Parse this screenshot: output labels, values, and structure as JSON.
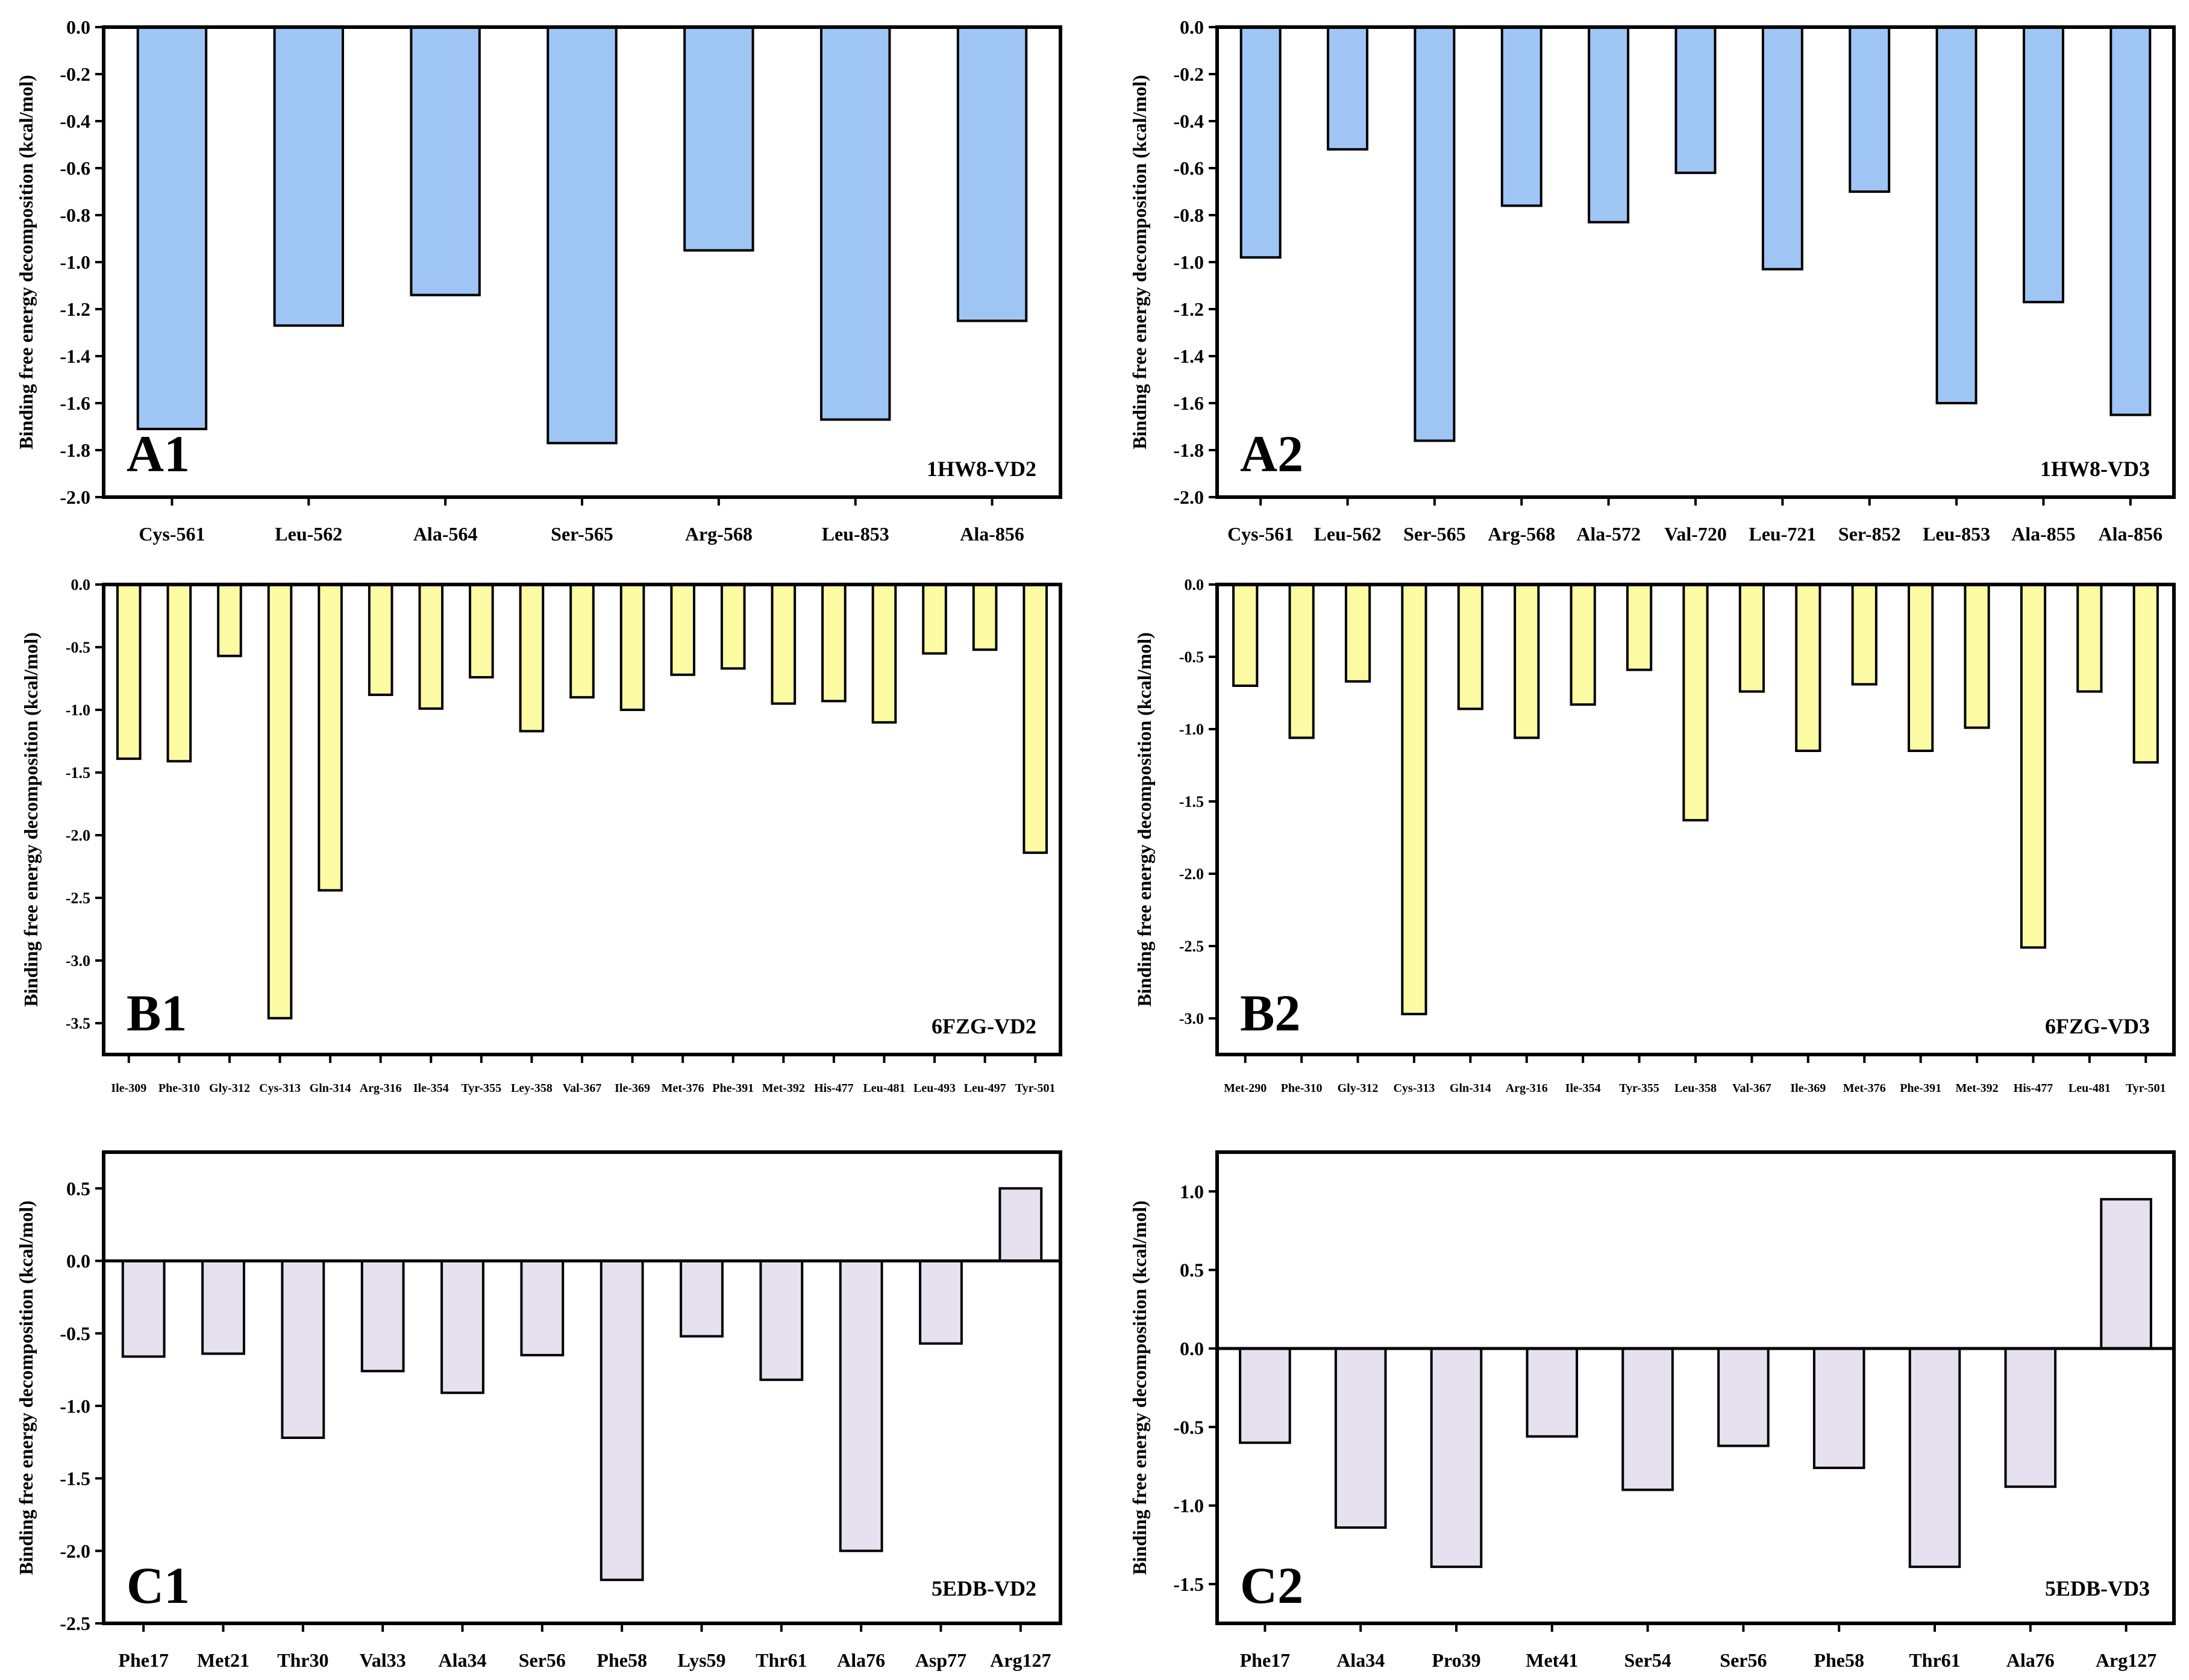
{
  "chart_data": [
    {
      "id": "A1",
      "type": "bar",
      "panel_label": "A1",
      "title": "1HW8-VD2",
      "ylabel": "Binding free energy decomposition (kcal/mol)",
      "ylim": [
        -2.0,
        0.0
      ],
      "yticks": [
        0.0,
        -0.2,
        -0.4,
        -0.6,
        -0.8,
        -1.0,
        -1.2,
        -1.4,
        -1.6,
        -1.8,
        -2.0
      ],
      "ytick_labels": [
        "0.0",
        "-0.2",
        "-0.4",
        "-0.6",
        "-0.8",
        "-1.0",
        "-1.2",
        "-1.4",
        "-1.6",
        "-1.8",
        "-2.0"
      ],
      "bar_color": "#9ec5f4",
      "categories": [
        "Cys-561",
        "Leu-562",
        "Ala-564",
        "Ser-565",
        "Arg-568",
        "Leu-853",
        "Ala-856"
      ],
      "values": [
        -1.71,
        -1.27,
        -1.14,
        -1.77,
        -0.95,
        -1.67,
        -1.25
      ]
    },
    {
      "id": "A2",
      "type": "bar",
      "panel_label": "A2",
      "title": "1HW8-VD3",
      "ylabel": "Binding free energy decomposition (kcal/mol)",
      "ylim": [
        -2.0,
        0.0
      ],
      "yticks": [
        0.0,
        -0.2,
        -0.4,
        -0.6,
        -0.8,
        -1.0,
        -1.2,
        -1.4,
        -1.6,
        -1.8,
        -2.0
      ],
      "ytick_labels": [
        "0.0",
        "-0.2",
        "-0.4",
        "-0.6",
        "-0.8",
        "-1.0",
        "-1.2",
        "-1.4",
        "-1.6",
        "-1.8",
        "-2.0"
      ],
      "bar_color": "#9ec5f4",
      "categories": [
        "Cys-561",
        "Leu-562",
        "Ser-565",
        "Arg-568",
        "Ala-572",
        "Val-720",
        "Leu-721",
        "Ser-852",
        "Leu-853",
        "Ala-855",
        "Ala-856"
      ],
      "values": [
        -0.98,
        -0.52,
        -1.76,
        -0.76,
        -0.83,
        -0.62,
        -1.03,
        -0.7,
        -1.6,
        -1.17,
        -1.65
      ]
    },
    {
      "id": "B1",
      "type": "bar",
      "panel_label": "B1",
      "title": "6FZG-VD2",
      "ylabel": "Binding free energy decomposition (kcal/mol)",
      "ylim": [
        -3.75,
        0.0
      ],
      "yticks": [
        0.0,
        -0.5,
        -1.0,
        -1.5,
        -2.0,
        -2.5,
        -3.0,
        -3.5
      ],
      "ytick_labels": [
        "0.0",
        "-0.5",
        "-1.0",
        "-1.5",
        "-2.0",
        "-2.5",
        "-3.0",
        "-3.5"
      ],
      "bar_color": "#fdfaa4",
      "categories": [
        "Ile-309",
        "Phe-310",
        "Gly-312",
        "Cys-313",
        "Gln-314",
        "Arg-316",
        "Ile-354",
        "Tyr-355",
        "Ley-358",
        "Val-367",
        "Ile-369",
        "Met-376",
        "Phe-391",
        "Met-392",
        "His-477",
        "Leu-481",
        "Leu-493",
        "Leu-497",
        "Tyr-501"
      ],
      "values": [
        -1.39,
        -1.41,
        -0.57,
        -3.46,
        -2.44,
        -0.88,
        -0.99,
        -0.74,
        -1.17,
        -0.9,
        -1.0,
        -0.72,
        -0.67,
        -0.95,
        -0.93,
        -1.1,
        -0.55,
        -0.52,
        -2.14
      ]
    },
    {
      "id": "B2",
      "type": "bar",
      "panel_label": "B2",
      "title": "6FZG-VD3",
      "ylabel": "Binding free energy decomposition (kcal/mol)",
      "ylim": [
        -3.25,
        0.0
      ],
      "yticks": [
        0.0,
        -0.5,
        -1.0,
        -1.5,
        -2.0,
        -2.5,
        -3.0
      ],
      "ytick_labels": [
        "0.0",
        "-0.5",
        "-1.0",
        "-1.5",
        "-2.0",
        "-2.5",
        "-3.0"
      ],
      "bar_color": "#fdfaa4",
      "categories": [
        "Met-290",
        "Phe-310",
        "Gly-312",
        "Cys-313",
        "Gln-314",
        "Arg-316",
        "Ile-354",
        "Tyr-355",
        "Leu-358",
        "Val-367",
        "Ile-369",
        "Met-376",
        "Phe-391",
        "Met-392",
        "His-477",
        "Leu-481",
        "Tyr-501"
      ],
      "values": [
        -0.7,
        -1.06,
        -0.67,
        -2.97,
        -0.86,
        -1.06,
        -0.83,
        -0.59,
        -1.63,
        -0.74,
        -1.15,
        -0.69,
        -1.15,
        -0.99,
        -2.51,
        -0.74,
        -1.23
      ]
    },
    {
      "id": "C1",
      "type": "bar",
      "panel_label": "C1",
      "title": "5EDB-VD2",
      "ylabel": "Binding free energy decomposition (kcal/mol)",
      "ylim": [
        -2.5,
        0.75
      ],
      "yticks": [
        0.5,
        0.0,
        -0.5,
        -1.0,
        -1.5,
        -2.0,
        -2.5
      ],
      "ytick_labels": [
        "0.5",
        "0.0",
        "-0.5",
        "-1.0",
        "-1.5",
        "-2.0",
        "-2.5"
      ],
      "bar_color": "#e6e0ef",
      "categories": [
        "Phe17",
        "Met21",
        "Thr30",
        "Val33",
        "Ala34",
        "Ser56",
        "Phe58",
        "Lys59",
        "Thr61",
        "Ala76",
        "Asp77",
        "Arg127"
      ],
      "values": [
        -0.66,
        -0.64,
        -1.22,
        -0.76,
        -0.91,
        -0.65,
        -2.2,
        -0.52,
        -0.82,
        -2.0,
        -0.57,
        0.5
      ]
    },
    {
      "id": "C2",
      "type": "bar",
      "panel_label": "C2",
      "title": "5EDB-VD3",
      "ylabel": "Binding free energy decomposition (kcal/mol)",
      "ylim": [
        -1.75,
        1.25
      ],
      "yticks": [
        1.0,
        0.5,
        0.0,
        -0.5,
        -1.0,
        -1.5
      ],
      "ytick_labels": [
        "1.0",
        "0.5",
        "0.0",
        "-0.5",
        "-1.0",
        "-1.5"
      ],
      "bar_color": "#e6e0ef",
      "categories": [
        "Phe17",
        "Ala34",
        "Pro39",
        "Met41",
        "Ser54",
        "Ser56",
        "Phe58",
        "Thr61",
        "Ala76",
        "Arg127"
      ],
      "values": [
        -0.6,
        -1.14,
        -1.39,
        -0.56,
        -0.9,
        -0.62,
        -0.76,
        -1.39,
        -0.88,
        0.95
      ]
    }
  ]
}
